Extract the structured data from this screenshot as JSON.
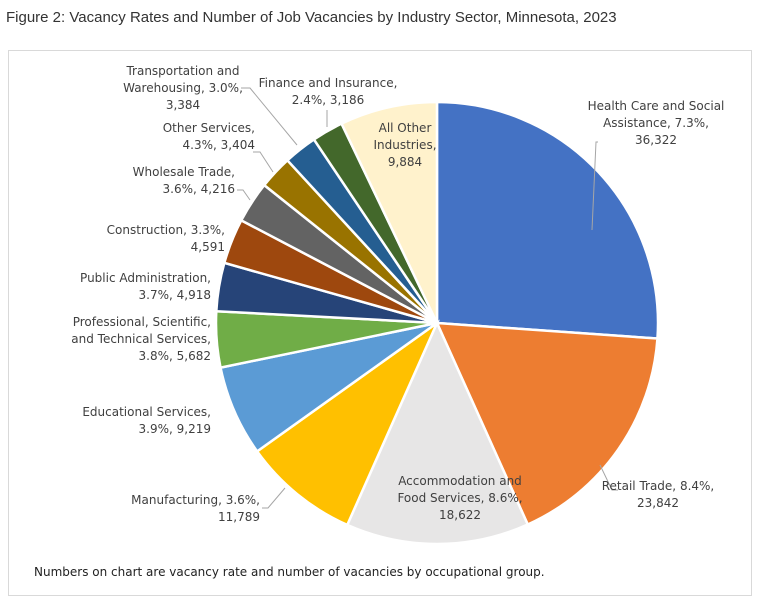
{
  "chart_data": {
    "type": "pie",
    "title": "Figure 2: Vacancy Rates and Number of Job Vacancies by Industry Sector, Minnesota, 2023",
    "note": "Numbers on chart are vacancy rate and number of vacancies by occupational group.",
    "slices": [
      {
        "name": "Health Care and Social Assistance",
        "rate": "7.3%",
        "value": 36322,
        "color": "#4472C4",
        "label": [
          "Health Care and Social",
          "Assistance, 7.3%,",
          "36,322"
        ]
      },
      {
        "name": "Retail Trade",
        "rate": "8.4%",
        "value": 23842,
        "color": "#ED7D31",
        "label": [
          "Retail Trade, 8.4%,",
          "23,842"
        ]
      },
      {
        "name": "Accommodation and Food Services",
        "rate": "8.6%",
        "value": 18622,
        "color": "#E7E6E6",
        "label": [
          "Accommodation and",
          "Food Services, 8.6%,",
          "18,622"
        ]
      },
      {
        "name": "Manufacturing",
        "rate": "3.6%",
        "value": 11789,
        "color": "#FFC000",
        "label": [
          "Manufacturing, 3.6%,",
          "11,789"
        ]
      },
      {
        "name": "Educational Services",
        "rate": "3.9%",
        "value": 9219,
        "color": "#5B9BD5",
        "label": [
          "Educational Services,",
          "3.9%, 9,219"
        ]
      },
      {
        "name": "Professional, Scientific, and Technical Services",
        "rate": "3.8%",
        "value": 5682,
        "color": "#70AD47",
        "label": [
          "Professional, Scientific,",
          "and Technical Services,",
          "3.8%, 5,682"
        ]
      },
      {
        "name": "Public Administration",
        "rate": "3.7%",
        "value": 4918,
        "color": "#264478",
        "label": [
          "Public Administration,",
          "3.7%, 4,918"
        ]
      },
      {
        "name": "Construction",
        "rate": "3.3%",
        "value": 4591,
        "color": "#9E480E",
        "label": [
          "Construction, 3.3%,",
          "4,591"
        ]
      },
      {
        "name": "Wholesale Trade",
        "rate": "3.6%",
        "value": 4216,
        "color": "#636363",
        "label": [
          "Wholesale Trade,",
          "3.6%, 4,216"
        ]
      },
      {
        "name": "Other Services",
        "rate": "4.3%",
        "value": 3404,
        "color": "#997300",
        "label": [
          "Other Services,",
          "4.3%, 3,404"
        ]
      },
      {
        "name": "Transportation and Warehousing",
        "rate": "3.0%",
        "value": 3384,
        "color": "#255E91",
        "label": [
          "Transportation and",
          "Warehousing, 3.0%,",
          "3,384"
        ]
      },
      {
        "name": "Finance and Insurance",
        "rate": "2.4%",
        "value": 3186,
        "color": "#43682B",
        "label": [
          "Finance and Insurance,",
          "2.4%, 3,186"
        ]
      },
      {
        "name": "All Other Industries",
        "rate": "",
        "value": 9884,
        "color": "#FFF2CC",
        "label": [
          "All Other",
          "Industries,",
          "9,884"
        ]
      }
    ]
  }
}
